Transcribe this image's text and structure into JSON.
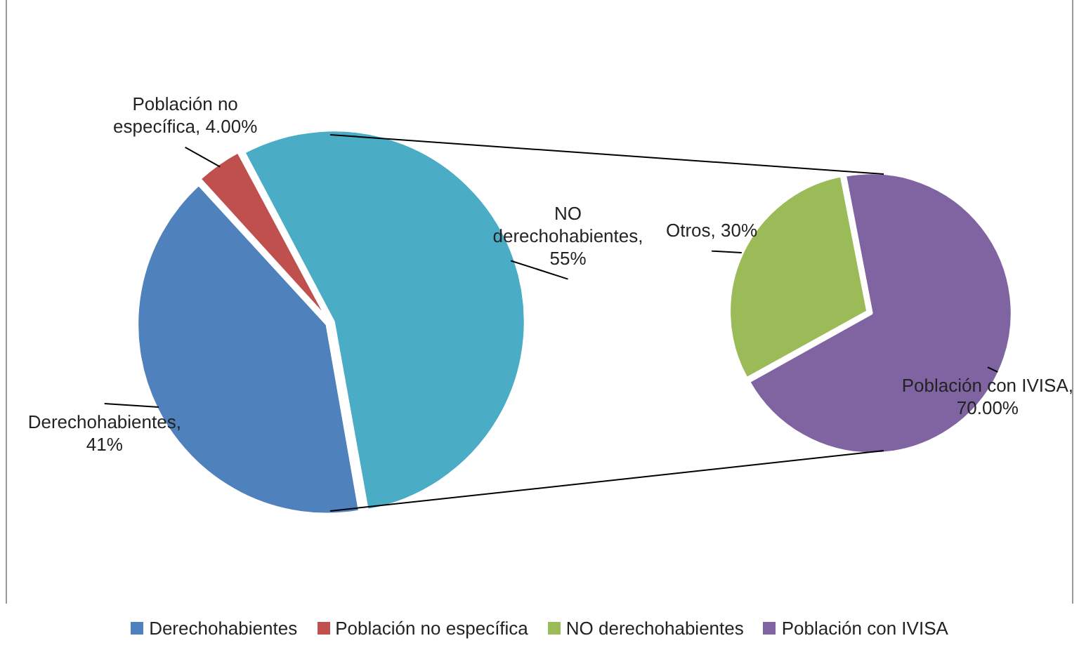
{
  "chart_data": [
    {
      "type": "pie",
      "categories": [
        "Derechohabientes",
        "Población no específica",
        null
      ],
      "values": [
        41,
        4,
        55
      ],
      "colors": [
        "#4f81bd",
        "#c0504d",
        "#4bacc6"
      ],
      "value_labels": [
        "Derechohabientes, 41%",
        "Población no específica, 4.00%",
        "NO derechohabientes, 55%"
      ],
      "legend": "bottom"
    },
    {
      "type": "pie",
      "categories": [
        "NO derechohabientes",
        "Población con IVISA"
      ],
      "values": [
        30,
        70
      ],
      "colors": [
        "#9bbb59",
        "#8064a2"
      ],
      "value_labels": [
        "Otros, 30%",
        "Población con IVISA, 70.00%"
      ],
      "legend": "bottom"
    }
  ]
}
